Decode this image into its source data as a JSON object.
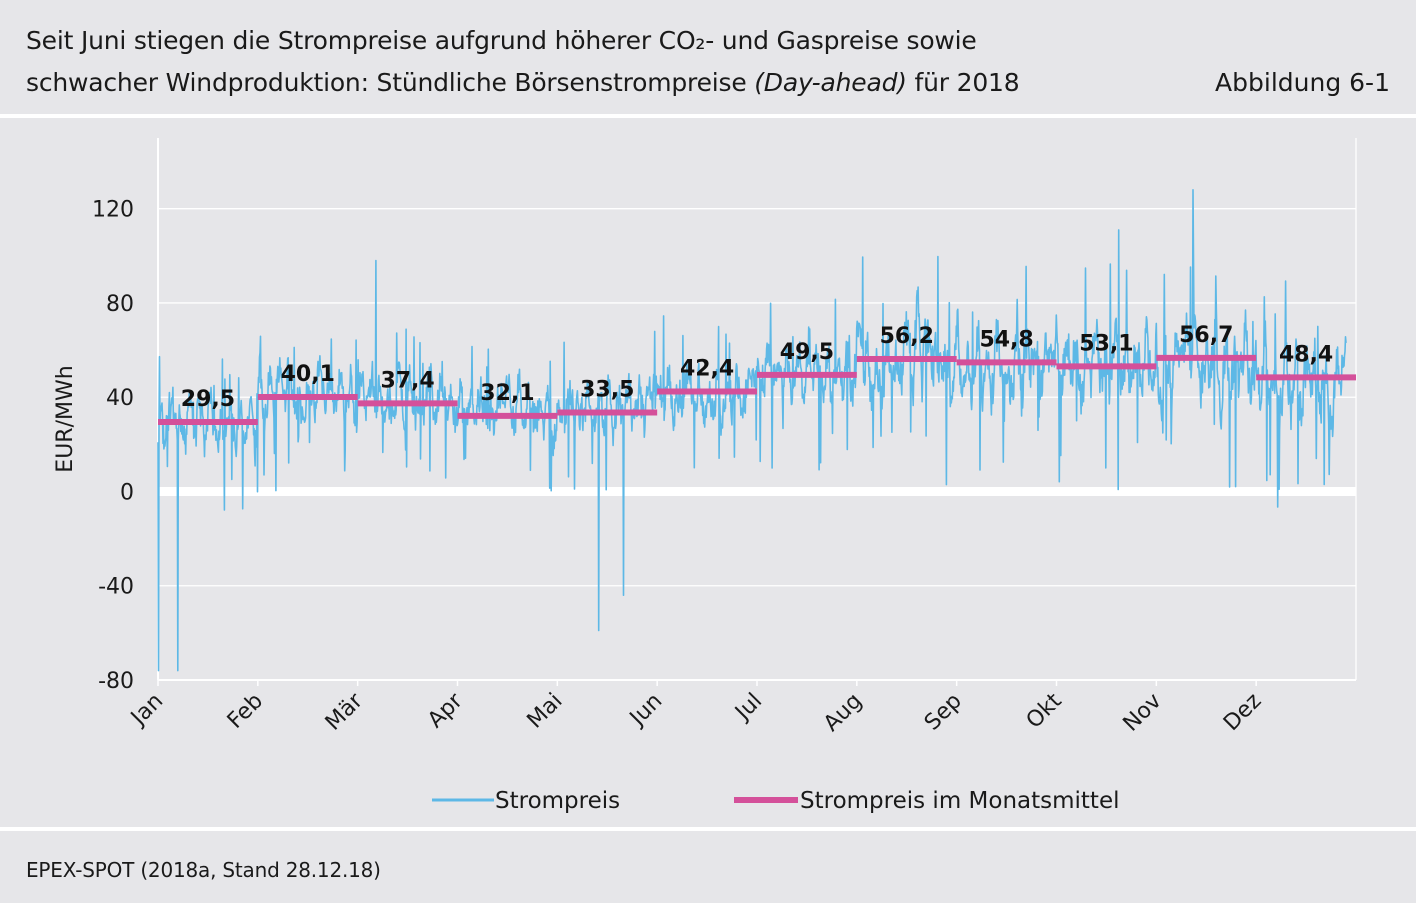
{
  "header": {
    "title_line1": "Seit Juni stiegen die Strompreise aufgrund höherer CO₂- und Gaspreise sowie",
    "title_line2_prefix": "schwacher Windproduktion: Stündliche Börsenstrompreise ",
    "title_line2_italic": "(Day-ahead)",
    "title_line2_suffix": " für 2018",
    "figure_label": "Abbildung 6-1"
  },
  "footer": {
    "source": "EPEX-SPOT (2018a, Stand 28.12.18)"
  },
  "colors": {
    "background": "#e6e6e9",
    "hourly_line": "#5db8e6",
    "monthly_mean": "#d4509a",
    "grid": "#ffffff"
  },
  "chart_data": {
    "type": "line",
    "title": "",
    "xlabel": "",
    "ylabel": "EUR/MWh",
    "ylim": [
      -80,
      150
    ],
    "yticks": [
      -80,
      -40,
      0,
      40,
      80,
      120
    ],
    "ytick_labels": [
      "-80",
      "-40",
      "0",
      "40",
      "80",
      "120"
    ],
    "categories": [
      "Jan",
      "Feb",
      "Mär",
      "Apr",
      "Mai",
      "Jun",
      "Jul",
      "Aug",
      "Sep",
      "Okt",
      "Nov",
      "Dez"
    ],
    "grid": true,
    "legend_position": "bottom",
    "series": [
      {
        "name": "Strompreis",
        "kind": "hourly",
        "color": "#5db8e6",
        "min": -76,
        "max": 128,
        "description_min_label": "-76",
        "notable_points": [
          {
            "month_index": 0,
            "value": -76
          },
          {
            "month_index": 4,
            "value": -59
          },
          {
            "month_index": 4,
            "value": -44
          },
          {
            "month_index": 2,
            "value": 98
          },
          {
            "month_index": 10,
            "value": 128
          },
          {
            "month_index": 9,
            "value": 111
          }
        ]
      },
      {
        "name": "Strompreis im Monatsmittel",
        "kind": "monthly_mean",
        "color": "#d4509a",
        "values": [
          29.5,
          40.1,
          37.4,
          32.1,
          33.5,
          42.4,
          49.5,
          56.2,
          54.8,
          53.1,
          56.7,
          48.4
        ],
        "labels": [
          "29,5",
          "40,1",
          "37,4",
          "32,1",
          "33,5",
          "42,4",
          "49,5",
          "56,2",
          "54,8",
          "53,1",
          "56,7",
          "48,4"
        ]
      }
    ]
  }
}
